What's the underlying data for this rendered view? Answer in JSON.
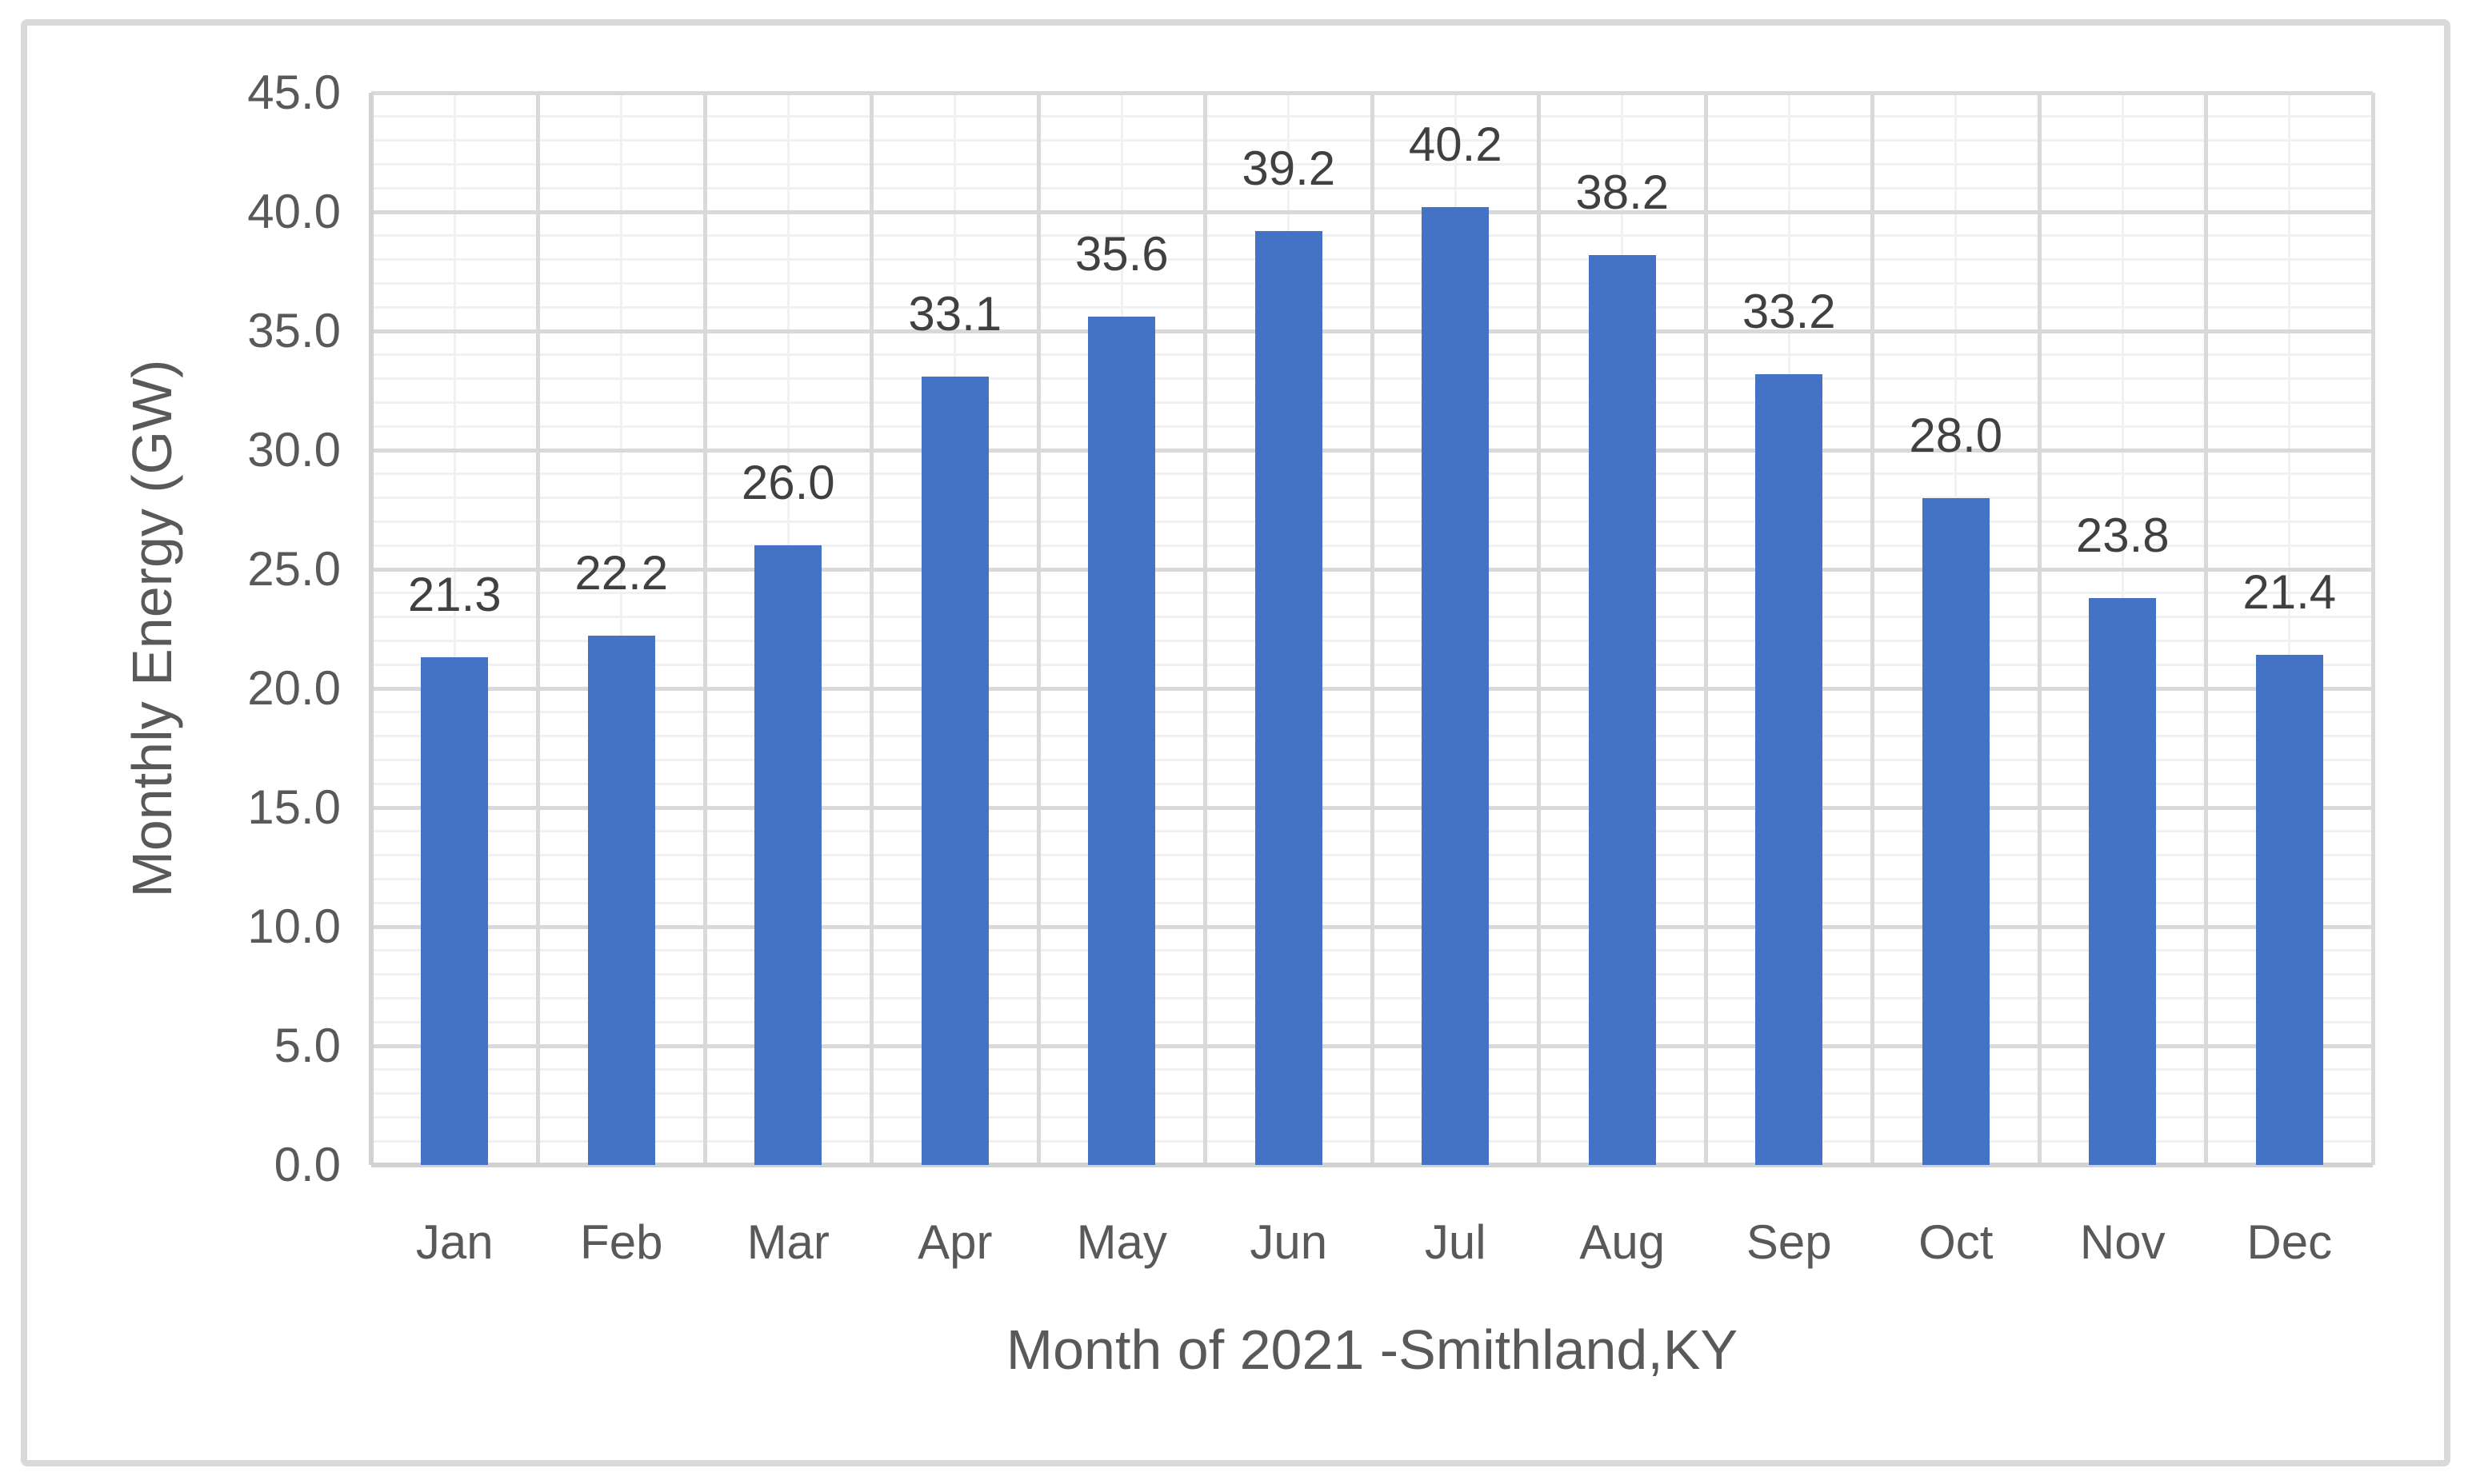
{
  "chart_data": {
    "type": "bar",
    "title": "",
    "categories": [
      "Jan",
      "Feb",
      "Mar",
      "Apr",
      "May",
      "Jun",
      "Jul",
      "Aug",
      "Sep",
      "Oct",
      "Nov",
      "Dec"
    ],
    "values": [
      21.3,
      22.2,
      26.0,
      33.1,
      35.6,
      39.2,
      40.2,
      38.2,
      33.2,
      28.0,
      23.8,
      21.4
    ],
    "data_labels": [
      "21.3",
      "22.2",
      "26.0",
      "33.1",
      "35.6",
      "39.2",
      "40.2",
      "38.2",
      "33.2",
      "28.0",
      "23.8",
      "21.4"
    ],
    "xlabel": "Month of 2021 -Smithland,KY",
    "ylabel": "Monthly Energy (GW)",
    "ylim": [
      0,
      45
    ],
    "y_major_unit": 5,
    "y_minor_unit": 1,
    "y_tick_labels": [
      "0.0",
      "5.0",
      "10.0",
      "15.0",
      "20.0",
      "25.0",
      "30.0",
      "35.0",
      "40.0",
      "45.0"
    ],
    "grid": {
      "horizontal_major": true,
      "horizontal_minor": true,
      "vertical_major_at_category_boundaries": true,
      "vertical_minor_at_category_centers": true
    },
    "legend": "none",
    "colors": {
      "bar": "#4472C4",
      "major_gridline": "#D9D9D9",
      "minor_gridline": "#F1F1F1",
      "axis_line": "#D2D2D2",
      "axis_text": "#595959",
      "data_label_text": "#404040",
      "chart_border": "#D9D9D9",
      "background": "#FFFFFF"
    }
  }
}
